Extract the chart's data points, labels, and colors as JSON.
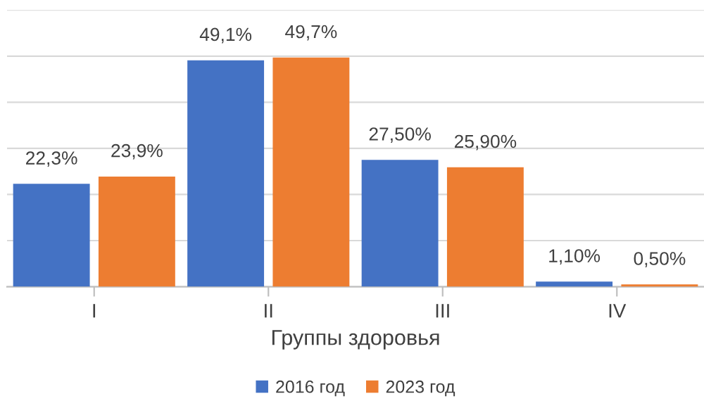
{
  "chart_data": {
    "type": "bar",
    "xlabel": "Группы здоровья",
    "categories": [
      "I",
      "II",
      "III",
      "IV"
    ],
    "series": [
      {
        "name": "2016 год",
        "color": "#4472c4",
        "values": [
          22.3,
          49.1,
          27.5,
          1.1
        ],
        "value_labels": [
          "22,3%",
          "49,1%",
          "27,50%",
          "1,10%"
        ]
      },
      {
        "name": "2023 год",
        "color": "#ed7d31",
        "values": [
          23.9,
          49.7,
          25.9,
          0.5
        ],
        "value_labels": [
          "23,9%",
          "49,7%",
          "25,90%",
          "0,50%"
        ]
      }
    ],
    "ylim": [
      0,
      60
    ],
    "yticks": [
      {
        "value": 0,
        "label": null
      },
      {
        "value": 10,
        "label": null
      },
      {
        "value": 20,
        "label": null
      },
      {
        "value": 30,
        "label": null
      },
      {
        "value": 40,
        "label": null
      },
      {
        "value": 50,
        "label": null
      },
      {
        "value": 60,
        "label": null
      }
    ],
    "tick_labels": "x",
    "grid": "y",
    "legend": "bottom"
  }
}
